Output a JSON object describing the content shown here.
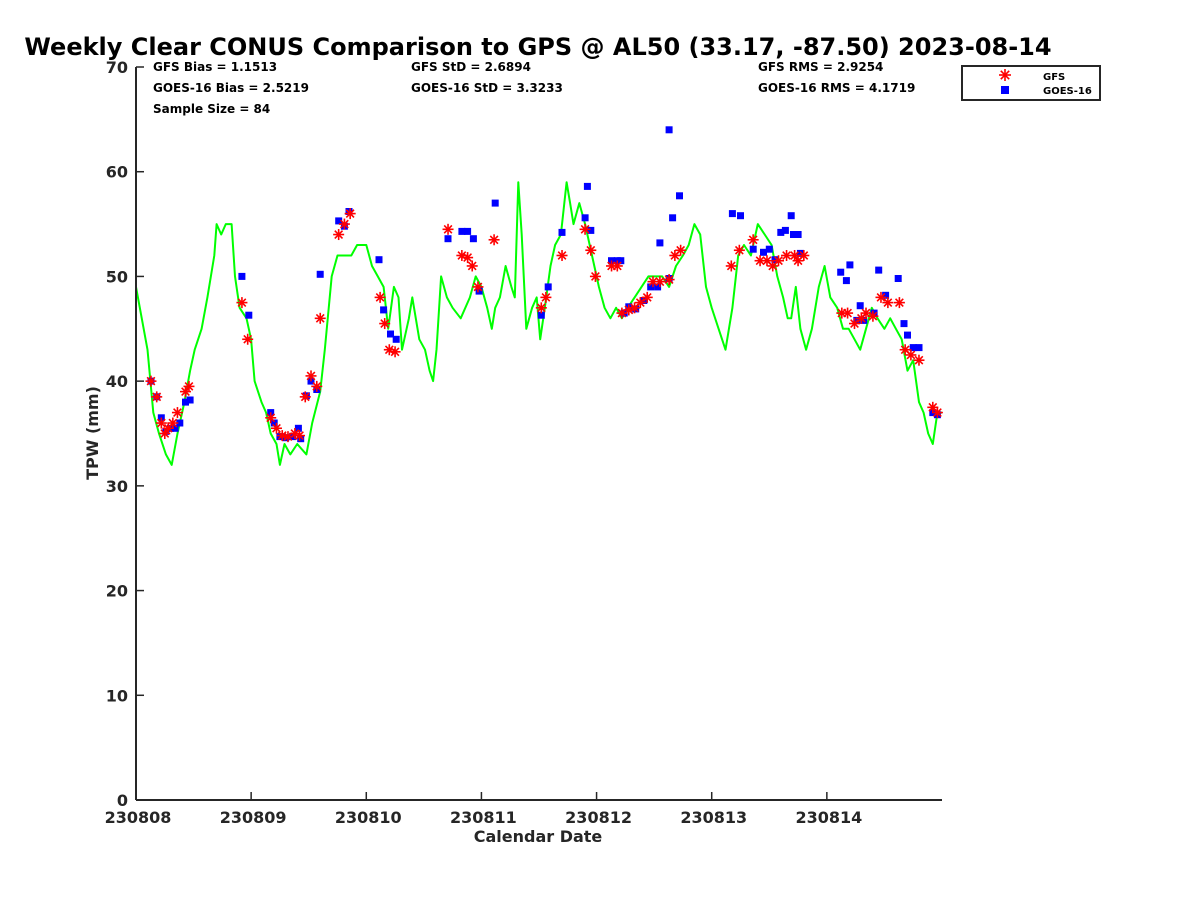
{
  "chart_data": {
    "type": "scatter",
    "title": "Weekly Clear CONUS Comparison to GPS @ AL50 (33.17, -87.50) 2023-08-14",
    "xlabel": "Calendar Date",
    "ylabel": "TPW (mm)",
    "xlim": [
      0,
      7
    ],
    "ylim": [
      0,
      70
    ],
    "grid": false,
    "legend_position": "top-right",
    "x_ticks": [
      0,
      1,
      2,
      3,
      4,
      5,
      6
    ],
    "x_tick_labels": [
      "230808",
      "230809",
      "230810",
      "230811",
      "230812",
      "230813",
      "230814"
    ],
    "y_ticks": [
      0,
      10,
      20,
      30,
      40,
      50,
      60,
      70
    ],
    "y_tick_labels": [
      "0",
      "10",
      "20",
      "30",
      "40",
      "50",
      "60",
      "70"
    ],
    "colors": {
      "gps": "#00ff00",
      "gfs": "#ff0000",
      "goes": "#0000ff",
      "axis": "#262626"
    },
    "stats": [
      "GFS Bias = 1.1513",
      "GOES-16 Bias = 2.5219",
      "Sample Size = 84",
      "GFS StD = 2.6894",
      "GOES-16 StD = 3.3233",
      "GFS RMS = 2.9254",
      "GOES-16 RMS = 4.1719"
    ],
    "series": [
      {
        "style": "line",
        "points": [
          [
            0.0,
            49
          ],
          [
            0.1,
            43
          ],
          [
            0.15,
            37
          ],
          [
            0.2,
            35
          ],
          [
            0.26,
            33
          ],
          [
            0.31,
            32
          ],
          [
            0.36,
            35
          ],
          [
            0.42,
            38
          ],
          [
            0.47,
            41
          ],
          [
            0.51,
            43
          ],
          [
            0.57,
            45
          ],
          [
            0.62,
            48
          ],
          [
            0.68,
            52
          ],
          [
            0.7,
            55
          ],
          [
            0.74,
            54
          ],
          [
            0.78,
            55
          ],
          [
            0.83,
            55
          ],
          [
            0.86,
            50
          ],
          [
            0.9,
            47
          ],
          [
            0.96,
            46
          ],
          [
            1.0,
            44
          ],
          [
            1.03,
            40
          ],
          [
            1.09,
            38
          ],
          [
            1.13,
            37
          ],
          [
            1.17,
            35
          ],
          [
            1.22,
            34
          ],
          [
            1.25,
            32
          ],
          [
            1.29,
            34
          ],
          [
            1.34,
            33
          ],
          [
            1.4,
            34
          ],
          [
            1.48,
            33
          ],
          [
            1.53,
            36
          ],
          [
            1.6,
            39
          ],
          [
            1.64,
            43
          ],
          [
            1.7,
            50
          ],
          [
            1.75,
            52
          ],
          [
            1.81,
            52
          ],
          [
            1.87,
            52
          ],
          [
            1.92,
            53
          ],
          [
            2.0,
            53
          ],
          [
            2.05,
            51
          ],
          [
            2.1,
            50
          ],
          [
            2.15,
            49
          ],
          [
            2.19,
            45
          ],
          [
            2.24,
            49
          ],
          [
            2.28,
            48
          ],
          [
            2.31,
            43
          ],
          [
            2.37,
            46
          ],
          [
            2.4,
            48
          ],
          [
            2.46,
            44
          ],
          [
            2.51,
            43
          ],
          [
            2.55,
            41
          ],
          [
            2.58,
            40
          ],
          [
            2.61,
            43
          ],
          [
            2.65,
            50
          ],
          [
            2.7,
            48
          ],
          [
            2.75,
            47
          ],
          [
            2.82,
            46
          ],
          [
            2.9,
            48
          ],
          [
            2.95,
            50
          ],
          [
            3.0,
            49
          ],
          [
            3.05,
            47
          ],
          [
            3.09,
            45
          ],
          [
            3.12,
            47
          ],
          [
            3.16,
            48
          ],
          [
            3.21,
            51
          ],
          [
            3.26,
            49
          ],
          [
            3.29,
            48
          ],
          [
            3.32,
            59
          ],
          [
            3.35,
            54
          ],
          [
            3.39,
            45
          ],
          [
            3.44,
            47
          ],
          [
            3.48,
            48
          ],
          [
            3.51,
            44
          ],
          [
            3.55,
            47
          ],
          [
            3.6,
            51
          ],
          [
            3.64,
            53
          ],
          [
            3.69,
            54
          ],
          [
            3.74,
            59
          ],
          [
            3.77,
            57
          ],
          [
            3.8,
            55
          ],
          [
            3.85,
            57
          ],
          [
            3.9,
            55
          ],
          [
            3.96,
            52
          ],
          [
            4.02,
            49
          ],
          [
            4.07,
            47
          ],
          [
            4.12,
            46
          ],
          [
            4.17,
            47
          ],
          [
            4.22,
            46
          ],
          [
            4.27,
            47
          ],
          [
            4.33,
            48
          ],
          [
            4.39,
            49
          ],
          [
            4.45,
            50
          ],
          [
            4.51,
            50
          ],
          [
            4.57,
            50
          ],
          [
            4.63,
            49
          ],
          [
            4.69,
            51
          ],
          [
            4.75,
            52
          ],
          [
            4.8,
            53
          ],
          [
            4.85,
            55
          ],
          [
            4.9,
            54
          ],
          [
            4.95,
            49
          ],
          [
            5.0,
            47
          ],
          [
            5.06,
            45
          ],
          [
            5.12,
            43
          ],
          [
            5.18,
            47
          ],
          [
            5.23,
            52
          ],
          [
            5.28,
            53
          ],
          [
            5.34,
            52
          ],
          [
            5.4,
            55
          ],
          [
            5.46,
            54
          ],
          [
            5.52,
            53
          ],
          [
            5.57,
            50
          ],
          [
            5.62,
            48
          ],
          [
            5.66,
            46
          ],
          [
            5.69,
            46
          ],
          [
            5.73,
            49
          ],
          [
            5.77,
            45
          ],
          [
            5.82,
            43
          ],
          [
            5.87,
            45
          ],
          [
            5.93,
            49
          ],
          [
            5.98,
            51
          ],
          [
            6.03,
            48
          ],
          [
            6.09,
            47
          ],
          [
            6.14,
            45
          ],
          [
            6.19,
            45
          ],
          [
            6.24,
            44
          ],
          [
            6.29,
            43
          ],
          [
            6.34,
            45
          ],
          [
            6.39,
            47
          ],
          [
            6.44,
            46
          ],
          [
            6.5,
            45
          ],
          [
            6.55,
            46
          ],
          [
            6.6,
            45
          ],
          [
            6.65,
            44
          ],
          [
            6.7,
            41
          ],
          [
            6.75,
            42
          ],
          [
            6.8,
            38
          ],
          [
            6.84,
            37
          ],
          [
            6.88,
            35
          ],
          [
            6.92,
            34
          ],
          [
            6.96,
            37
          ],
          [
            7.0,
            37
          ]
        ]
      },
      {
        "name": "GFS",
        "style": "asterisk",
        "points": [
          [
            0.13,
            40
          ],
          [
            0.18,
            38.5
          ],
          [
            0.22,
            36
          ],
          [
            0.25,
            35
          ],
          [
            0.28,
            35.5
          ],
          [
            0.32,
            36
          ],
          [
            0.36,
            37
          ],
          [
            0.43,
            39
          ],
          [
            0.46,
            39.5
          ],
          [
            0.92,
            47.5
          ],
          [
            0.97,
            44
          ],
          [
            1.17,
            36.5
          ],
          [
            1.22,
            35.5
          ],
          [
            1.27,
            34.8
          ],
          [
            1.32,
            34.7
          ],
          [
            1.38,
            35
          ],
          [
            1.42,
            34.8
          ],
          [
            1.47,
            38.5
          ],
          [
            1.52,
            40.5
          ],
          [
            1.57,
            39.5
          ],
          [
            1.6,
            46
          ],
          [
            1.76,
            54
          ],
          [
            1.81,
            55
          ],
          [
            1.86,
            56
          ],
          [
            2.12,
            48
          ],
          [
            2.16,
            45.5
          ],
          [
            2.2,
            43
          ],
          [
            2.25,
            42.8
          ],
          [
            2.71,
            54.5
          ],
          [
            2.83,
            52
          ],
          [
            2.88,
            51.8
          ],
          [
            2.92,
            51
          ],
          [
            2.97,
            49
          ],
          [
            3.11,
            53.5
          ],
          [
            3.52,
            47
          ],
          [
            3.56,
            48
          ],
          [
            3.7,
            52
          ],
          [
            3.9,
            54.5
          ],
          [
            3.95,
            52.5
          ],
          [
            3.99,
            50
          ],
          [
            4.13,
            51
          ],
          [
            4.18,
            51
          ],
          [
            4.22,
            46.5
          ],
          [
            4.28,
            46.8
          ],
          [
            4.33,
            47
          ],
          [
            4.38,
            47.5
          ],
          [
            4.44,
            48
          ],
          [
            4.49,
            49.5
          ],
          [
            4.55,
            49.5
          ],
          [
            4.63,
            49.7
          ],
          [
            4.68,
            52
          ],
          [
            4.73,
            52.5
          ],
          [
            5.17,
            51
          ],
          [
            5.24,
            52.5
          ],
          [
            5.36,
            53.5
          ],
          [
            5.42,
            51.5
          ],
          [
            5.48,
            51.5
          ],
          [
            5.53,
            51
          ],
          [
            5.58,
            51.5
          ],
          [
            5.65,
            52
          ],
          [
            5.72,
            52
          ],
          [
            5.75,
            51.5
          ],
          [
            5.8,
            52
          ],
          [
            6.13,
            46.5
          ],
          [
            6.18,
            46.5
          ],
          [
            6.24,
            45.5
          ],
          [
            6.3,
            46
          ],
          [
            6.34,
            46.5
          ],
          [
            6.4,
            46.2
          ],
          [
            6.47,
            48
          ],
          [
            6.53,
            47.5
          ],
          [
            6.63,
            47.5
          ],
          [
            6.68,
            43
          ],
          [
            6.73,
            42.5
          ],
          [
            6.8,
            42
          ],
          [
            6.92,
            37.5
          ],
          [
            6.96,
            37
          ]
        ]
      },
      {
        "name": "GOES-16",
        "style": "square",
        "points": [
          [
            0.13,
            40
          ],
          [
            0.18,
            38.5
          ],
          [
            0.22,
            36.5
          ],
          [
            0.26,
            35.2
          ],
          [
            0.3,
            35.5
          ],
          [
            0.34,
            35.5
          ],
          [
            0.38,
            36
          ],
          [
            0.43,
            38
          ],
          [
            0.47,
            38.2
          ],
          [
            0.92,
            50
          ],
          [
            0.98,
            46.3
          ],
          [
            1.17,
            37
          ],
          [
            1.2,
            36
          ],
          [
            1.25,
            34.7
          ],
          [
            1.3,
            34.6
          ],
          [
            1.36,
            34.7
          ],
          [
            1.41,
            35.5
          ],
          [
            1.43,
            34.5
          ],
          [
            1.48,
            38.6
          ],
          [
            1.52,
            40
          ],
          [
            1.57,
            39.2
          ],
          [
            1.6,
            50.2
          ],
          [
            1.76,
            55.3
          ],
          [
            1.81,
            54.8
          ],
          [
            1.85,
            56.2
          ],
          [
            2.11,
            51.6
          ],
          [
            2.15,
            46.8
          ],
          [
            2.21,
            44.5
          ],
          [
            2.26,
            44
          ],
          [
            2.71,
            53.6
          ],
          [
            2.83,
            54.3
          ],
          [
            2.88,
            54.3
          ],
          [
            2.93,
            53.6
          ],
          [
            2.98,
            48.6
          ],
          [
            3.12,
            57
          ],
          [
            3.52,
            46.3
          ],
          [
            3.58,
            49
          ],
          [
            3.7,
            54.2
          ],
          [
            3.9,
            55.6
          ],
          [
            3.92,
            58.6
          ],
          [
            3.95,
            54.4
          ],
          [
            4.13,
            51.5
          ],
          [
            4.18,
            51.5
          ],
          [
            4.21,
            51.5
          ],
          [
            4.24,
            46.5
          ],
          [
            4.28,
            47.1
          ],
          [
            4.34,
            46.9
          ],
          [
            4.41,
            47.7
          ],
          [
            4.47,
            49
          ],
          [
            4.53,
            49
          ],
          [
            4.55,
            53.2
          ],
          [
            4.63,
            49.8
          ],
          [
            4.63,
            64
          ],
          [
            4.66,
            55.6
          ],
          [
            4.72,
            57.7
          ],
          [
            5.18,
            56
          ],
          [
            5.25,
            55.8
          ],
          [
            5.36,
            52.6
          ],
          [
            5.45,
            52.3
          ],
          [
            5.5,
            52.6
          ],
          [
            5.55,
            51.6
          ],
          [
            5.6,
            54.2
          ],
          [
            5.64,
            54.4
          ],
          [
            5.69,
            55.8
          ],
          [
            5.71,
            54
          ],
          [
            5.75,
            54
          ],
          [
            5.77,
            52.2
          ],
          [
            6.12,
            50.4
          ],
          [
            6.17,
            49.6
          ],
          [
            6.2,
            51.1
          ],
          [
            6.26,
            45.8
          ],
          [
            6.29,
            47.2
          ],
          [
            6.32,
            45.8
          ],
          [
            6.41,
            46.5
          ],
          [
            6.45,
            50.6
          ],
          [
            6.51,
            48.2
          ],
          [
            6.62,
            49.8
          ],
          [
            6.67,
            45.5
          ],
          [
            6.7,
            44.4
          ],
          [
            6.75,
            43.2
          ],
          [
            6.8,
            43.2
          ],
          [
            6.92,
            37
          ],
          [
            6.96,
            36.8
          ]
        ]
      }
    ]
  }
}
